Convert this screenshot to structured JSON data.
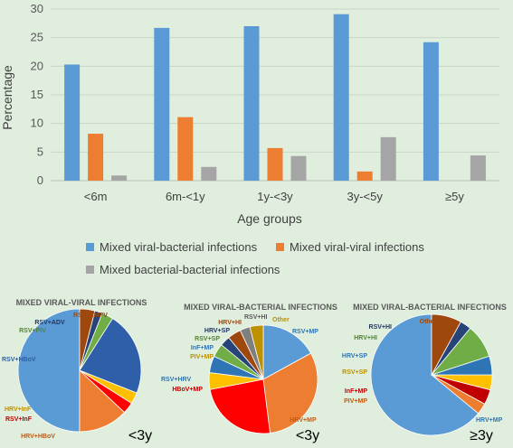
{
  "chart_data": [
    {
      "type": "bar",
      "title": "",
      "xlabel": "Age groups",
      "ylabel": "Percentage",
      "ylim": [
        0,
        30
      ],
      "yticks": [
        0,
        5,
        10,
        15,
        20,
        25,
        30
      ],
      "grid": true,
      "legend_position": "bottom",
      "categories": [
        "<6m",
        "6m-<1y",
        "1y-<3y",
        "3y-<5y",
        "≥5y"
      ],
      "series": [
        {
          "name": "Mixed viral-bacterial infections",
          "color": "#5b9bd5",
          "values": [
            20.3,
            26.7,
            27.0,
            29.1,
            24.2
          ]
        },
        {
          "name": "Mixed viral-viral infections",
          "color": "#ed7d31",
          "values": [
            8.2,
            11.1,
            5.7,
            1.6,
            0
          ]
        },
        {
          "name": "Mixed bacterial-bacterial infections",
          "color": "#a5a5a5",
          "values": [
            0.9,
            2.4,
            4.3,
            7.6,
            4.4
          ]
        }
      ]
    },
    {
      "type": "pie",
      "title": "MIXED VIRAL-VIRAL INFECTIONS",
      "corner_label": "<3y",
      "slices": [
        {
          "label": "RSV+HRV",
          "value": 50,
          "color": "#5b9bd5"
        },
        {
          "label": "HRV+HBoV",
          "value": 13,
          "color": "#ed7d31"
        },
        {
          "label": "RSV+InF",
          "value": 3,
          "color": "#ff0000"
        },
        {
          "label": "HRV+InF",
          "value": 3,
          "color": "#ffc000"
        },
        {
          "label": "RSV+HBoV",
          "value": 22,
          "color": "#2e5fa8"
        },
        {
          "label": "RSV+PIV",
          "value": 3,
          "color": "#70ad47"
        },
        {
          "label": "RSV+ADV",
          "value": 2,
          "color": "#264478"
        },
        {
          "label": "RSV+hMPV",
          "value": 4,
          "color": "#9e480e"
        }
      ]
    },
    {
      "type": "pie",
      "title": "MIXED VIRAL-BACTERIAL INFECTIONS",
      "corner_label": "<3y",
      "slices": [
        {
          "label": "RSV+MP",
          "value": 17,
          "color": "#5b9bd5"
        },
        {
          "label": "HRV+MP",
          "value": 31,
          "color": "#ed7d31"
        },
        {
          "label": "HBoV+MP",
          "value": 24,
          "color": "#ff0000"
        },
        {
          "label": "PIV+MP",
          "value": 5,
          "color": "#ffc000"
        },
        {
          "label": "InF+MP",
          "value": 5,
          "color": "#2e75b6"
        },
        {
          "label": "RSV+SP",
          "value": 4,
          "color": "#70ad47"
        },
        {
          "label": "HRV+SP",
          "value": 3,
          "color": "#264478"
        },
        {
          "label": "HRV+HI",
          "value": 4,
          "color": "#9e480e"
        },
        {
          "label": "RSV+HI",
          "value": 3,
          "color": "#7f7f7f"
        },
        {
          "label": "Other",
          "value": 4,
          "color": "#bf9000"
        }
      ]
    },
    {
      "type": "pie",
      "title": "MIXED VIRAL-BACTERIAL INFECTIONS",
      "corner_label": "≥3y",
      "slices": [
        {
          "label": "HRV+MP",
          "value": 64,
          "color": "#5b9bd5"
        },
        {
          "label": "PIV+MP",
          "value": 3,
          "color": "#ed7d31"
        },
        {
          "label": "InF+MP",
          "value": 4,
          "color": "#c00000"
        },
        {
          "label": "RSV+SP",
          "value": 4,
          "color": "#ffc000"
        },
        {
          "label": "HRV+SP",
          "value": 5,
          "color": "#2e75b6"
        },
        {
          "label": "HRV+HI",
          "value": 9,
          "color": "#70ad47"
        },
        {
          "label": "RSV+HI",
          "value": 3,
          "color": "#264478"
        },
        {
          "label": "Other",
          "value": 8,
          "color": "#9e480e"
        }
      ]
    }
  ]
}
